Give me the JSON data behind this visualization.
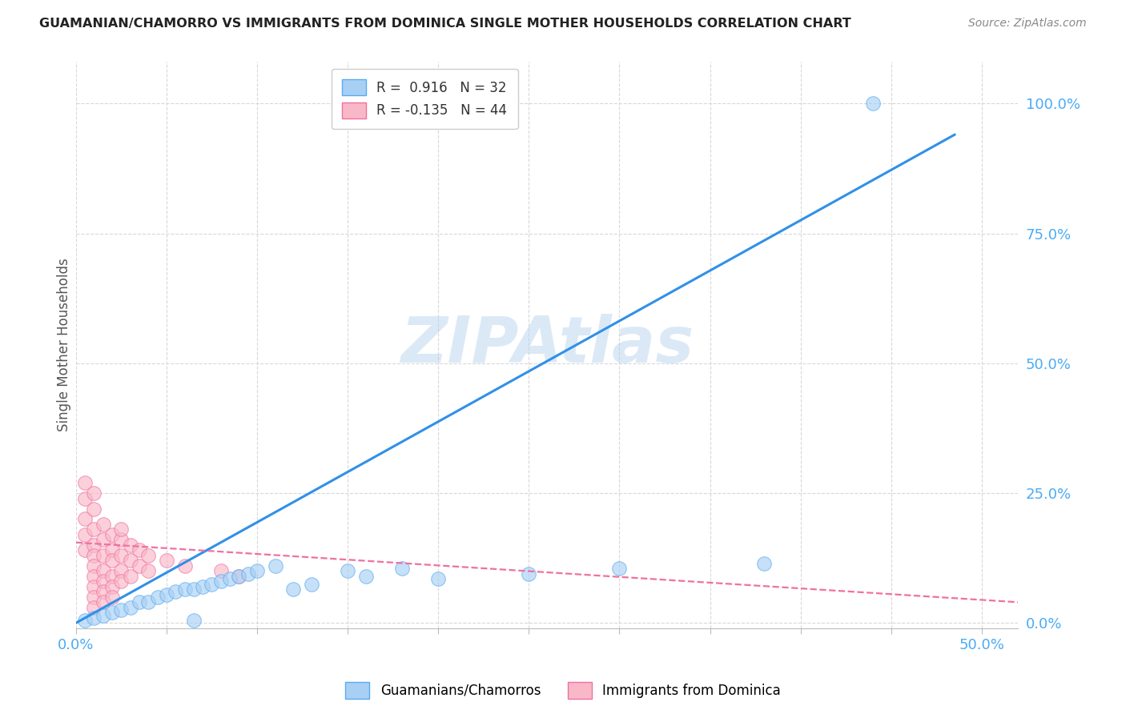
{
  "title": "GUAMANIAN/CHAMORRO VS IMMIGRANTS FROM DOMINICA SINGLE MOTHER HOUSEHOLDS CORRELATION CHART",
  "source": "Source: ZipAtlas.com",
  "ylabel": "Single Mother Households",
  "ytick_values": [
    0.0,
    0.25,
    0.5,
    0.75,
    1.0
  ],
  "xlim": [
    0.0,
    0.52
  ],
  "ylim": [
    -0.01,
    1.08
  ],
  "watermark": "ZIPAtlas",
  "legend_r1": "R =  0.916   N = 32",
  "legend_r2": "R = -0.135   N = 44",
  "blue_fill": "#A8D0F5",
  "blue_edge": "#5AABF0",
  "pink_fill": "#F9B8C8",
  "pink_edge": "#F070A0",
  "blue_line_color": "#3090E8",
  "pink_line_color": "#F060A0",
  "blue_scatter": [
    [
      0.005,
      0.005
    ],
    [
      0.01,
      0.01
    ],
    [
      0.015,
      0.015
    ],
    [
      0.02,
      0.02
    ],
    [
      0.025,
      0.025
    ],
    [
      0.03,
      0.03
    ],
    [
      0.035,
      0.04
    ],
    [
      0.04,
      0.04
    ],
    [
      0.045,
      0.05
    ],
    [
      0.05,
      0.055
    ],
    [
      0.055,
      0.06
    ],
    [
      0.06,
      0.065
    ],
    [
      0.065,
      0.065
    ],
    [
      0.07,
      0.07
    ],
    [
      0.075,
      0.075
    ],
    [
      0.08,
      0.08
    ],
    [
      0.085,
      0.085
    ],
    [
      0.09,
      0.09
    ],
    [
      0.095,
      0.095
    ],
    [
      0.1,
      0.1
    ],
    [
      0.11,
      0.11
    ],
    [
      0.12,
      0.065
    ],
    [
      0.13,
      0.075
    ],
    [
      0.15,
      0.1
    ],
    [
      0.16,
      0.09
    ],
    [
      0.18,
      0.105
    ],
    [
      0.2,
      0.085
    ],
    [
      0.25,
      0.095
    ],
    [
      0.3,
      0.105
    ],
    [
      0.38,
      0.115
    ],
    [
      0.44,
      1.0
    ],
    [
      0.065,
      0.005
    ]
  ],
  "pink_scatter": [
    [
      0.005,
      0.2
    ],
    [
      0.005,
      0.17
    ],
    [
      0.005,
      0.14
    ],
    [
      0.01,
      0.22
    ],
    [
      0.01,
      0.18
    ],
    [
      0.01,
      0.15
    ],
    [
      0.01,
      0.13
    ],
    [
      0.01,
      0.11
    ],
    [
      0.01,
      0.09
    ],
    [
      0.01,
      0.07
    ],
    [
      0.01,
      0.05
    ],
    [
      0.01,
      0.03
    ],
    [
      0.015,
      0.19
    ],
    [
      0.015,
      0.16
    ],
    [
      0.015,
      0.13
    ],
    [
      0.015,
      0.1
    ],
    [
      0.015,
      0.08
    ],
    [
      0.015,
      0.06
    ],
    [
      0.015,
      0.04
    ],
    [
      0.02,
      0.17
    ],
    [
      0.02,
      0.14
    ],
    [
      0.02,
      0.12
    ],
    [
      0.02,
      0.09
    ],
    [
      0.02,
      0.07
    ],
    [
      0.02,
      0.05
    ],
    [
      0.025,
      0.16
    ],
    [
      0.025,
      0.13
    ],
    [
      0.025,
      0.1
    ],
    [
      0.025,
      0.08
    ],
    [
      0.03,
      0.15
    ],
    [
      0.03,
      0.12
    ],
    [
      0.03,
      0.09
    ],
    [
      0.035,
      0.14
    ],
    [
      0.035,
      0.11
    ],
    [
      0.04,
      0.13
    ],
    [
      0.04,
      0.1
    ],
    [
      0.05,
      0.12
    ],
    [
      0.06,
      0.11
    ],
    [
      0.08,
      0.1
    ],
    [
      0.09,
      0.09
    ],
    [
      0.005,
      0.27
    ],
    [
      0.005,
      0.24
    ],
    [
      0.01,
      0.25
    ],
    [
      0.025,
      0.18
    ]
  ],
  "blue_line_x": [
    0.0,
    0.485
  ],
  "blue_line_y": [
    0.0,
    0.94
  ],
  "pink_line_x": [
    0.0,
    0.52
  ],
  "pink_line_y": [
    0.155,
    0.04
  ],
  "background_color": "#ffffff",
  "grid_color": "#D8D8D8",
  "title_color": "#222222",
  "axis_label_color": "#555555",
  "tick_label_color": "#4AABF5"
}
